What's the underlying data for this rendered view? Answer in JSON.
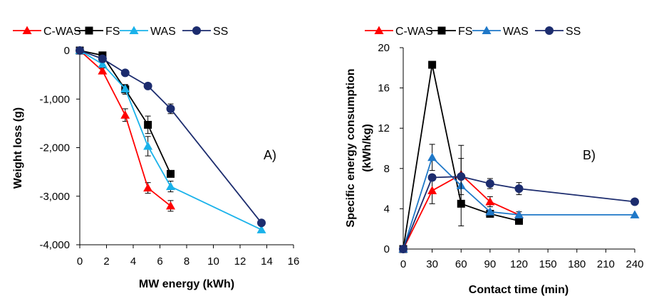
{
  "chart_data": [
    {
      "type": "line",
      "panel_label": "A)",
      "xlabel": "MW energy (kWh)",
      "ylabel": "Weight loss (g)",
      "xlim": [
        0,
        16
      ],
      "ylim": [
        -4000,
        0
      ],
      "x_ticks": [
        "0",
        "2",
        "4",
        "6",
        "8",
        "10",
        "12",
        "14",
        "16"
      ],
      "y_ticks": [
        "0",
        "-1,000",
        "-2,000",
        "-3,000",
        "-4,000"
      ],
      "legend_position": "top",
      "series": [
        {
          "name": "C-WAS",
          "color": "#ff0000",
          "marker": "triangle",
          "x": [
            0,
            1.7,
            3.4,
            5.1,
            6.8
          ],
          "y": [
            0,
            -420,
            -1330,
            -2830,
            -3200
          ],
          "err": [
            0,
            60,
            130,
            110,
            110
          ]
        },
        {
          "name": "FS",
          "color": "#000000",
          "marker": "square",
          "x": [
            0,
            1.7,
            3.4,
            5.1,
            6.8
          ],
          "y": [
            0,
            -100,
            -800,
            -1530,
            -2540
          ],
          "err": [
            0,
            40,
            100,
            180,
            0
          ]
        },
        {
          "name": "WAS",
          "color": "#1ab2ea",
          "marker": "triangle",
          "x": [
            0,
            1.7,
            3.4,
            5.1,
            6.8,
            13.6
          ],
          "y": [
            0,
            -280,
            -790,
            -1970,
            -2800,
            -3690
          ],
          "err": [
            0,
            40,
            80,
            200,
            110,
            0
          ]
        },
        {
          "name": "SS",
          "color": "#1c2c6e",
          "marker": "circle",
          "x": [
            0,
            1.7,
            3.4,
            5.1,
            6.8,
            13.6
          ],
          "y": [
            0,
            -170,
            -460,
            -730,
            -1200,
            -3550
          ],
          "err": [
            0,
            0,
            0,
            0,
            100,
            0
          ]
        }
      ]
    },
    {
      "type": "line",
      "panel_label": "B)",
      "xlabel": "Contact time (min)",
      "ylabel": "Specific energy  consumption (kWh/kg)",
      "ylabel_lines": [
        "Specific energy  consumption",
        "(kWh/kg)"
      ],
      "xlim": [
        0,
        240
      ],
      "ylim": [
        0,
        20
      ],
      "x_ticks": [
        "0",
        "30",
        "60",
        "90",
        "120",
        "150",
        "180",
        "210",
        "240"
      ],
      "y_ticks": [
        "0",
        "4",
        "8",
        "12",
        "16",
        "20"
      ],
      "legend_position": "top",
      "series": [
        {
          "name": "C-WAS",
          "color": "#ff0000",
          "marker": "triangle",
          "x": [
            0,
            30,
            60,
            90,
            120
          ],
          "y": [
            0,
            5.8,
            7.4,
            4.7,
            3.4
          ],
          "err": [
            0,
            1.3,
            0,
            0.5,
            0.3
          ]
        },
        {
          "name": "FS",
          "color": "#000000",
          "marker": "square",
          "x": [
            0,
            30,
            60,
            90,
            120
          ],
          "y": [
            0,
            18.3,
            4.5,
            3.5,
            2.8
          ],
          "err": [
            0,
            0,
            0,
            0.3,
            0
          ]
        },
        {
          "name": "WAS",
          "color": "#1f78c8",
          "marker": "triangle",
          "x": [
            0,
            30,
            60,
            90,
            120,
            240
          ],
          "y": [
            0,
            9.1,
            6.3,
            3.7,
            3.4,
            3.4
          ],
          "err": [
            0,
            1.3,
            4.0,
            0,
            0,
            0
          ]
        },
        {
          "name": "SS",
          "color": "#1c2c6e",
          "marker": "circle",
          "x": [
            0,
            30,
            60,
            90,
            120,
            240
          ],
          "y": [
            0,
            7.1,
            7.2,
            6.5,
            6.0,
            4.7
          ],
          "err": [
            0,
            0,
            1.8,
            0.5,
            0.6,
            0
          ]
        }
      ]
    }
  ]
}
